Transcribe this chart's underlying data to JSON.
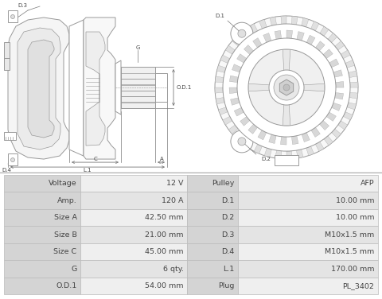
{
  "table_data": [
    [
      "Voltage",
      "12 V",
      "Pulley",
      "AFP"
    ],
    [
      "Amp.",
      "120 A",
      "D.1",
      "10.00 mm"
    ],
    [
      "Size A",
      "42.50 mm",
      "D.2",
      "10.00 mm"
    ],
    [
      "Size B",
      "21.00 mm",
      "D.3",
      "M10x1.5 mm"
    ],
    [
      "Size C",
      "45.00 mm",
      "D.4",
      "M10x1.5 mm"
    ],
    [
      "G",
      "6 qty.",
      "L.1",
      "170.00 mm"
    ],
    [
      "O.D.1",
      "54.00 mm",
      "Plug",
      "PL_3402"
    ]
  ],
  "label_bg": "#d4d4d4",
  "value_bg_light": "#efefef",
  "value_bg_dark": "#e4e4e4",
  "border_color": "#bbbbbb",
  "text_color": "#444444",
  "fig_bg": "#ffffff",
  "draw_bg": "#ffffff",
  "line_color": "#999999",
  "dim_color": "#777777"
}
